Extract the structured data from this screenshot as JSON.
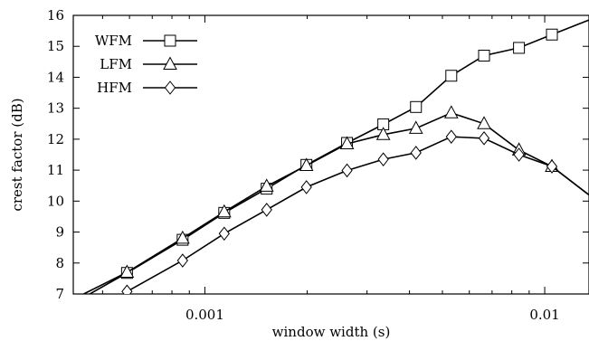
{
  "chart_data": {
    "type": "line",
    "xscale": "log",
    "xlim": [
      0.00041,
      0.0135
    ],
    "ylim": [
      7,
      16
    ],
    "xlabel": "window width (s)",
    "ylabel": "crest factor (dB)",
    "xticks": [
      {
        "value": 0.001,
        "label": "0.001"
      },
      {
        "value": 0.01,
        "label": "0.01"
      }
    ],
    "yticks": [
      7,
      8,
      9,
      10,
      11,
      12,
      13,
      14,
      15,
      16
    ],
    "legend_position": "top-left",
    "series": [
      {
        "name": "WFM",
        "marker": "square",
        "line_x": [
          0.00041,
          0.00059,
          0.00086,
          0.00114,
          0.00152,
          0.00199,
          0.00262,
          0.00335,
          0.00418,
          0.00531,
          0.00663,
          0.0084,
          0.0105,
          0.0135
        ],
        "line_y": [
          6.7,
          7.68,
          8.75,
          9.62,
          10.4,
          11.17,
          11.88,
          12.48,
          13.04,
          14.05,
          14.7,
          14.95,
          15.38,
          15.85
        ],
        "marker_x": [
          0.00059,
          0.00086,
          0.00114,
          0.00152,
          0.00199,
          0.00262,
          0.00335,
          0.00418,
          0.00531,
          0.00663,
          0.0084,
          0.0105
        ],
        "marker_y": [
          7.68,
          8.75,
          9.62,
          10.4,
          11.17,
          11.88,
          12.48,
          13.04,
          14.05,
          14.7,
          14.95,
          15.38
        ]
      },
      {
        "name": "LFM",
        "marker": "triangle",
        "line_x": [
          0.00044,
          0.00059,
          0.00086,
          0.00114,
          0.00152,
          0.00199,
          0.00262,
          0.00335,
          0.00418,
          0.00531,
          0.00663,
          0.0084,
          0.0105,
          0.0135
        ],
        "line_y": [
          7.0,
          7.7,
          8.8,
          9.65,
          10.48,
          11.15,
          11.85,
          12.15,
          12.35,
          12.85,
          12.5,
          11.65,
          11.12,
          10.2
        ],
        "marker_x": [
          0.00059,
          0.00086,
          0.00114,
          0.00152,
          0.00199,
          0.00262,
          0.00335,
          0.00418,
          0.00531,
          0.00663,
          0.0084,
          0.0105
        ],
        "marker_y": [
          7.7,
          8.8,
          9.65,
          10.48,
          11.15,
          11.85,
          12.15,
          12.35,
          12.85,
          12.5,
          11.65,
          11.12
        ]
      },
      {
        "name": "HFM",
        "marker": "diamond",
        "line_x": [
          0.00059,
          0.00086,
          0.00114,
          0.00152,
          0.00199,
          0.00262,
          0.00335,
          0.00418,
          0.00531,
          0.00663,
          0.0084,
          0.0105,
          0.0135
        ],
        "line_y": [
          7.08,
          8.08,
          8.95,
          9.72,
          10.45,
          10.99,
          11.35,
          11.56,
          12.08,
          12.03,
          11.5,
          11.12,
          10.2
        ],
        "marker_x": [
          0.00059,
          0.00086,
          0.00114,
          0.00152,
          0.00199,
          0.00262,
          0.00335,
          0.00418,
          0.00531,
          0.00663,
          0.0084,
          0.0105
        ],
        "marker_y": [
          7.08,
          8.08,
          8.95,
          9.72,
          10.45,
          10.99,
          11.35,
          11.56,
          12.08,
          12.03,
          11.5,
          11.12
        ]
      }
    ]
  }
}
